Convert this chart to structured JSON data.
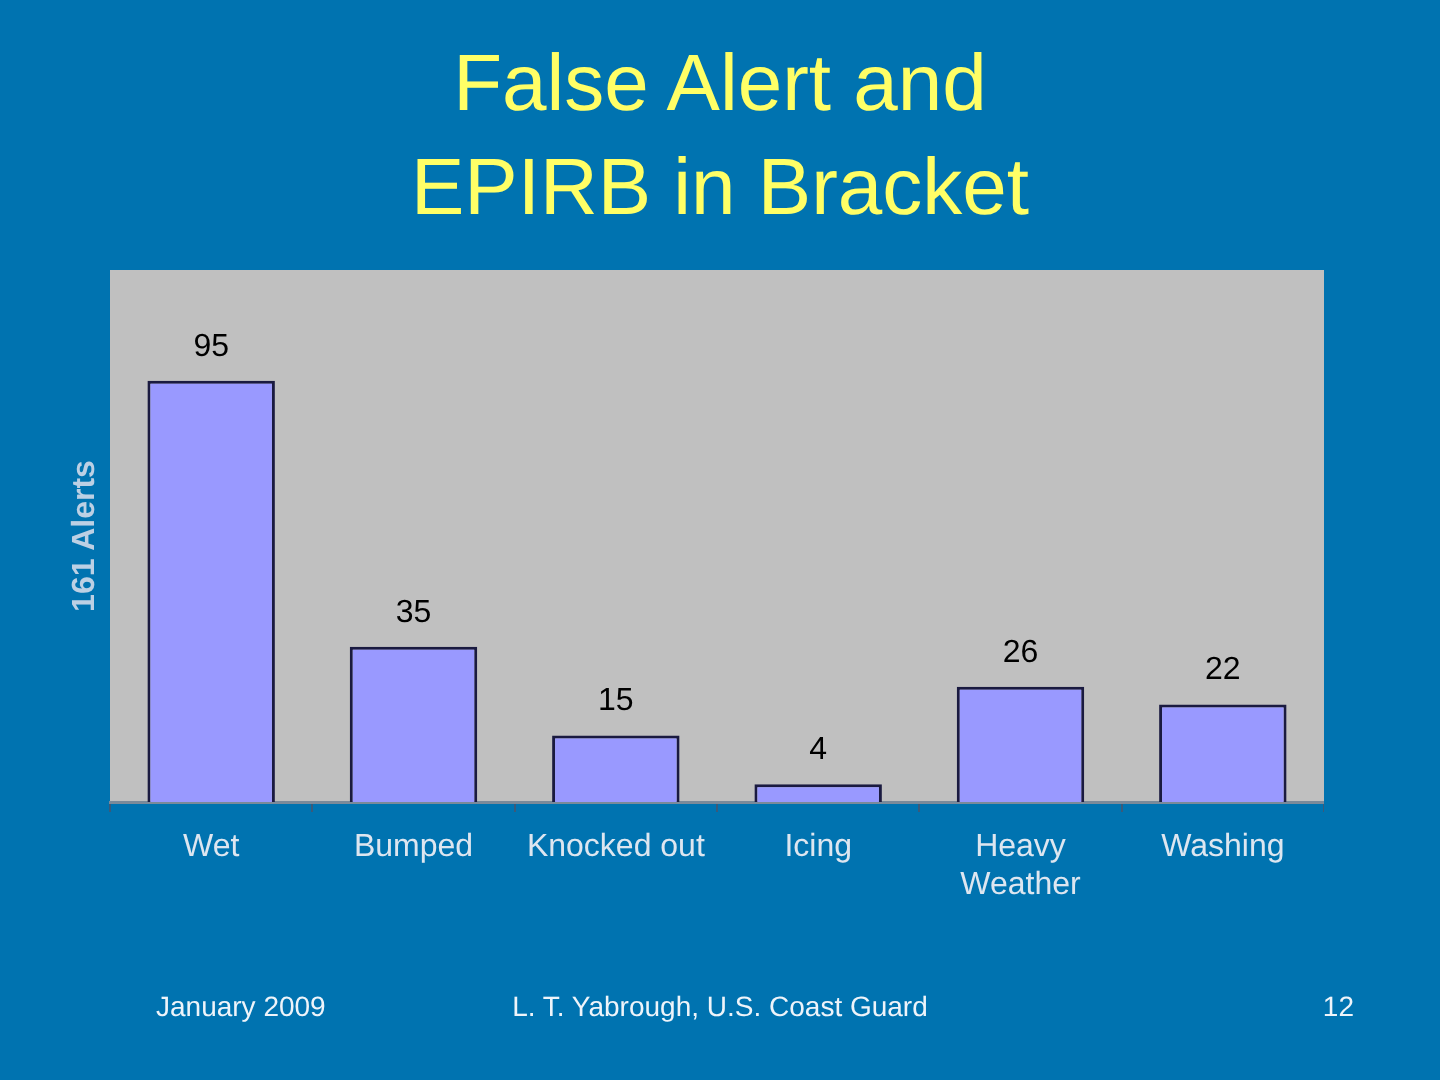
{
  "chart_data": {
    "type": "bar",
    "title": "False Alert and EPIRB in Bracket",
    "ylabel": "161 Alerts",
    "categories": [
      "Wet",
      "Bumped",
      "Knocked out",
      "Icing",
      "Heavy Weather",
      "Washing"
    ],
    "values": [
      95,
      35,
      15,
      4,
      26,
      22
    ],
    "color": "#9999ff",
    "ylim": [
      0,
      120
    ],
    "data_labels": true,
    "grid": false,
    "legend": false,
    "tick_labels": "x",
    "annotations": [
      "January 2009",
      "L. T. Yabrough, U.S. Coast Guard",
      "12"
    ]
  }
}
